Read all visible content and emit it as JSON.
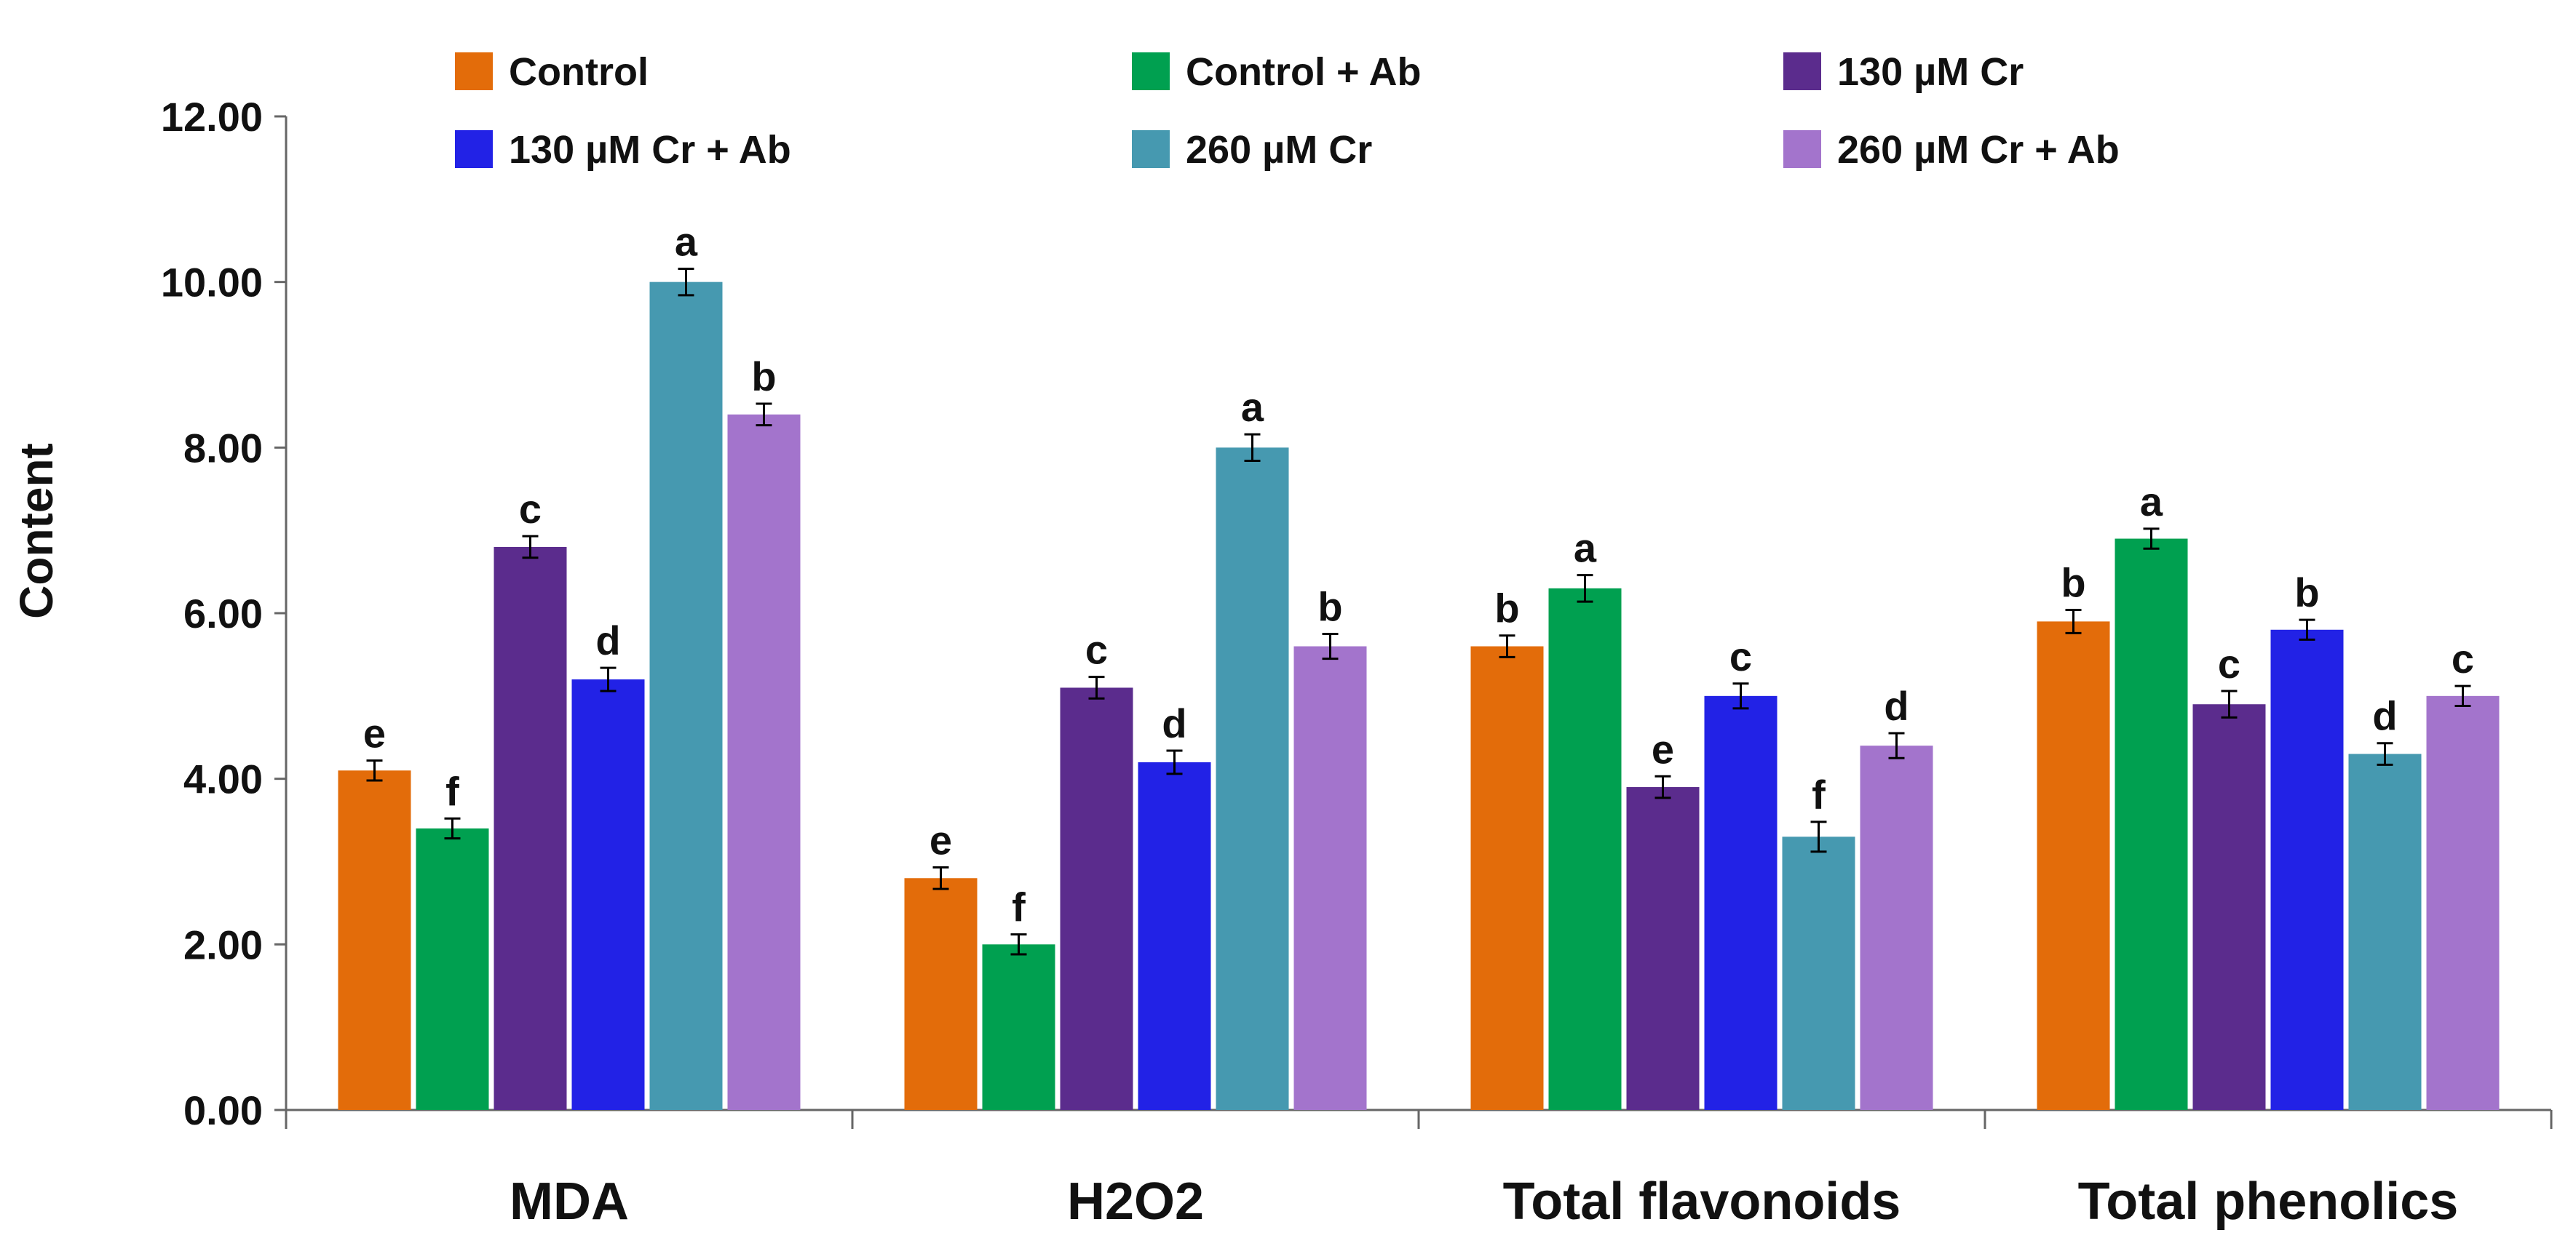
{
  "chart_data": {
    "type": "bar",
    "title": "",
    "xlabel": "",
    "ylabel": "Content",
    "ylim": [
      0,
      12
    ],
    "yticks": [
      "0.00",
      "2.00",
      "4.00",
      "6.00",
      "8.00",
      "10.00",
      "12.00"
    ],
    "grid": false,
    "legend_position": "top",
    "categories": [
      "MDA",
      "H2O2",
      "Total flavonoids",
      "Total phenolics"
    ],
    "series": [
      {
        "name": "Control",
        "color": "#E36C0A",
        "values": [
          4.1,
          2.8,
          5.6,
          5.9
        ],
        "errors": [
          0.12,
          0.13,
          0.13,
          0.14
        ],
        "letters": [
          "e",
          "e",
          "b",
          "b"
        ]
      },
      {
        "name": "Control + Ab",
        "color": "#00A050",
        "values": [
          3.4,
          2.0,
          6.3,
          6.9
        ],
        "errors": [
          0.12,
          0.12,
          0.16,
          0.12
        ],
        "letters": [
          "f",
          "f",
          "a",
          "a"
        ]
      },
      {
        "name": "130 µM Cr",
        "color": "#5B2C8D",
        "values": [
          6.8,
          5.1,
          3.9,
          4.9
        ],
        "errors": [
          0.13,
          0.13,
          0.13,
          0.16
        ],
        "letters": [
          "c",
          "c",
          "e",
          "c"
        ]
      },
      {
        "name": "130 µM Cr + Ab",
        "color": "#2222E6",
        "values": [
          5.2,
          4.2,
          5.0,
          5.8
        ],
        "errors": [
          0.14,
          0.14,
          0.15,
          0.12
        ],
        "letters": [
          "d",
          "d",
          "c",
          "b"
        ]
      },
      {
        "name": "260 µM Cr",
        "color": "#4699B0",
        "values": [
          10.0,
          8.0,
          3.3,
          4.3
        ],
        "errors": [
          0.16,
          0.16,
          0.18,
          0.13
        ],
        "letters": [
          "a",
          "a",
          "f",
          "d"
        ]
      },
      {
        "name": "260 µM Cr + Ab",
        "color": "#A374CC",
        "values": [
          8.4,
          5.6,
          4.4,
          5.0
        ],
        "errors": [
          0.13,
          0.15,
          0.15,
          0.12
        ],
        "letters": [
          "b",
          "b",
          "d",
          "c"
        ]
      }
    ]
  }
}
